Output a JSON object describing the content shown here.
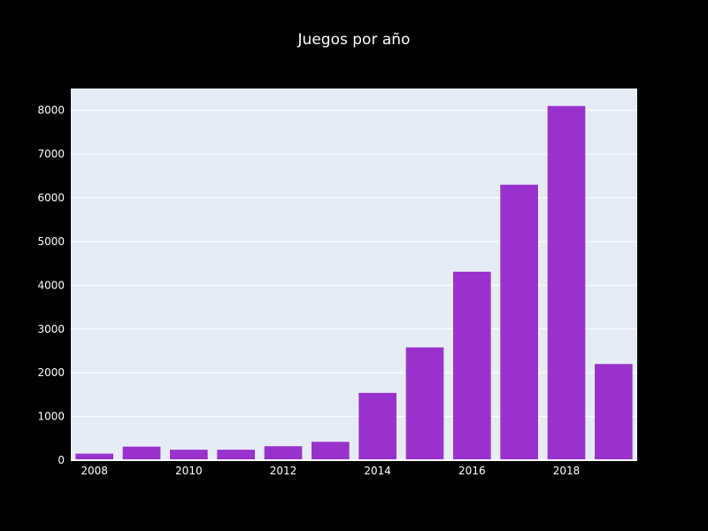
{
  "chart_data": {
    "type": "bar",
    "title": "Juegos por año",
    "xlabel": "",
    "ylabel": "",
    "categories": [
      2008,
      2009,
      2010,
      2011,
      2012,
      2013,
      2014,
      2015,
      2016,
      2017,
      2018,
      2019
    ],
    "values": [
      150,
      310,
      240,
      240,
      320,
      420,
      1540,
      2580,
      4310,
      6300,
      8100,
      2200
    ],
    "ylim": [
      0,
      8500
    ],
    "xlim": [
      2007.5,
      2019.5
    ],
    "yticks": [
      0,
      1000,
      2000,
      3000,
      4000,
      5000,
      6000,
      7000,
      8000
    ],
    "ytick_labels": [
      "0",
      "1000",
      "2000",
      "3000",
      "4000",
      "5000",
      "6000",
      "7000",
      "8000"
    ],
    "xticks": [
      2008,
      2010,
      2012,
      2014,
      2016,
      2018
    ],
    "xtick_labels": [
      "2008",
      "2010",
      "2012",
      "2014",
      "2016",
      "2018"
    ],
    "grid": true,
    "legend": "none"
  },
  "colors": {
    "background": "#000000",
    "plot_background": "#e5ecf6",
    "gridline": "#ffffff",
    "bar": "#9932cc",
    "text": "#ffffff"
  }
}
